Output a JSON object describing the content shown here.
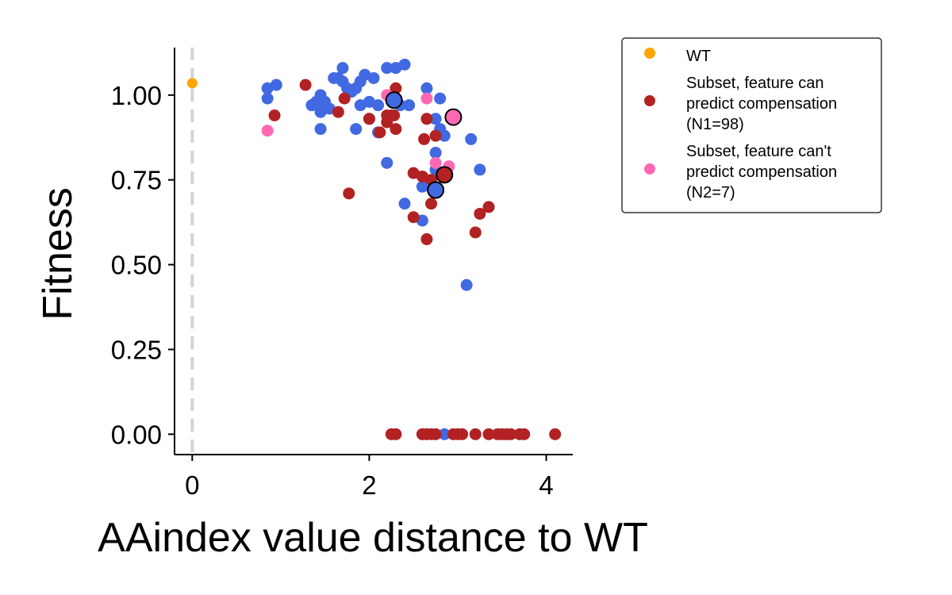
{
  "chart_data": {
    "type": "scatter",
    "title": "",
    "xlabel": "AAindex value distance to WT",
    "ylabel": "Fitness",
    "xlim": [
      -0.2,
      4.3
    ],
    "ylim": [
      -0.06,
      1.14
    ],
    "xticks": [
      0,
      2,
      4
    ],
    "yticks": [
      0.0,
      0.25,
      0.5,
      0.75,
      1.0
    ],
    "xtick_labels": [
      "0",
      "2",
      "4"
    ],
    "ytick_labels": [
      "0.00",
      "0.25",
      "0.50",
      "0.75",
      "1.00"
    ],
    "grid": false,
    "legend_position": "outside-top-right",
    "wt_reference_line": {
      "x": 0,
      "style": "dashed",
      "color": "#d3d3d3"
    },
    "background_points": {
      "color": "#4169e1",
      "points": [
        [
          0.85,
          1.02
        ],
        [
          0.95,
          1.03
        ],
        [
          0.85,
          0.99
        ],
        [
          1.35,
          0.97
        ],
        [
          1.4,
          0.98
        ],
        [
          1.45,
          1.0
        ],
        [
          1.5,
          0.98
        ],
        [
          1.45,
          0.95
        ],
        [
          1.55,
          0.96
        ],
        [
          1.6,
          1.05
        ],
        [
          1.65,
          1.05
        ],
        [
          1.7,
          1.04
        ],
        [
          1.75,
          1.02
        ],
        [
          1.7,
          1.08
        ],
        [
          1.8,
          1.01
        ],
        [
          1.85,
          1.02
        ],
        [
          1.9,
          1.04
        ],
        [
          1.95,
          1.06
        ],
        [
          2.0,
          0.98
        ],
        [
          2.05,
          1.05
        ],
        [
          2.1,
          0.97
        ],
        [
          2.2,
          1.08
        ],
        [
          2.3,
          1.08
        ],
        [
          2.4,
          1.09
        ],
        [
          2.35,
          0.97
        ],
        [
          2.45,
          0.97
        ],
        [
          2.1,
          0.89
        ],
        [
          1.9,
          0.97
        ],
        [
          1.85,
          0.9
        ],
        [
          1.45,
          0.9
        ],
        [
          2.0,
          0.93
        ],
        [
          2.2,
          0.8
        ],
        [
          2.65,
          1.02
        ],
        [
          2.75,
          0.93
        ],
        [
          2.8,
          0.99
        ],
        [
          2.85,
          0.88
        ],
        [
          2.8,
          0.9
        ],
        [
          2.75,
          0.83
        ],
        [
          2.75,
          0.78
        ],
        [
          2.6,
          0.73
        ],
        [
          2.75,
          0.72
        ],
        [
          2.6,
          0.63
        ],
        [
          2.4,
          0.68
        ],
        [
          3.15,
          0.87
        ],
        [
          3.25,
          0.78
        ],
        [
          3.1,
          0.44
        ],
        [
          2.85,
          0.0
        ]
      ]
    },
    "series": [
      {
        "name": "WT",
        "color": "#ffa500",
        "points": [
          [
            0.0,
            1.035
          ]
        ]
      },
      {
        "name": "Subset, feature can predict compensation (N1=98)",
        "color": "#b22222",
        "points": [
          [
            1.28,
            1.03
          ],
          [
            0.93,
            0.94
          ],
          [
            1.65,
            0.95
          ],
          [
            1.72,
            0.99
          ],
          [
            2.0,
            0.93
          ],
          [
            2.12,
            0.89
          ],
          [
            2.2,
            0.92
          ],
          [
            2.25,
            0.94
          ],
          [
            2.28,
            0.94
          ],
          [
            2.3,
            1.02
          ],
          [
            2.2,
            0.94
          ],
          [
            2.3,
            0.9
          ],
          [
            2.65,
            0.93
          ],
          [
            2.62,
            0.87
          ],
          [
            2.75,
            0.88
          ],
          [
            2.5,
            0.77
          ],
          [
            2.6,
            0.76
          ],
          [
            2.7,
            0.75
          ],
          [
            2.7,
            0.68
          ],
          [
            1.77,
            0.71
          ],
          [
            2.5,
            0.64
          ],
          [
            2.65,
            0.575
          ],
          [
            3.25,
            0.65
          ],
          [
            3.35,
            0.67
          ],
          [
            3.2,
            0.595
          ],
          [
            2.25,
            0.0
          ],
          [
            2.3,
            0.0
          ],
          [
            2.6,
            0.0
          ],
          [
            2.65,
            0.0
          ],
          [
            2.7,
            0.0
          ],
          [
            2.75,
            0.0
          ],
          [
            2.95,
            0.0
          ],
          [
            3.0,
            0.0
          ],
          [
            3.05,
            0.0
          ],
          [
            3.2,
            0.0
          ],
          [
            3.35,
            0.0
          ],
          [
            3.45,
            0.0
          ],
          [
            3.5,
            0.0
          ],
          [
            3.55,
            0.0
          ],
          [
            3.6,
            0.0
          ],
          [
            3.7,
            0.0
          ],
          [
            3.75,
            0.0
          ],
          [
            4.1,
            0.0
          ]
        ]
      },
      {
        "name": "Subset, feature can't predict compensation (N2=7)",
        "color": "#ff69b4",
        "points": [
          [
            0.85,
            0.895
          ],
          [
            2.2,
            1.0
          ],
          [
            2.65,
            0.99
          ],
          [
            2.75,
            0.8
          ],
          [
            2.9,
            0.79
          ]
        ]
      }
    ],
    "highlighted_points": [
      {
        "color": "#4169e1",
        "x": 2.28,
        "y": 0.985
      },
      {
        "color": "#4169e1",
        "x": 2.75,
        "y": 0.72
      },
      {
        "color": "#b22222",
        "x": 2.85,
        "y": 0.765
      },
      {
        "color": "#ff69b4",
        "x": 2.95,
        "y": 0.935
      }
    ],
    "legend": [
      {
        "lines": [
          "WT"
        ],
        "color": "#ffa500"
      },
      {
        "lines": [
          "Subset, feature can",
          "predict compensation",
          "(N1=98)"
        ],
        "color": "#b22222"
      },
      {
        "lines": [
          "Subset, feature can't",
          "predict compensation",
          "(N2=7)"
        ],
        "color": "#ff69b4"
      }
    ]
  }
}
